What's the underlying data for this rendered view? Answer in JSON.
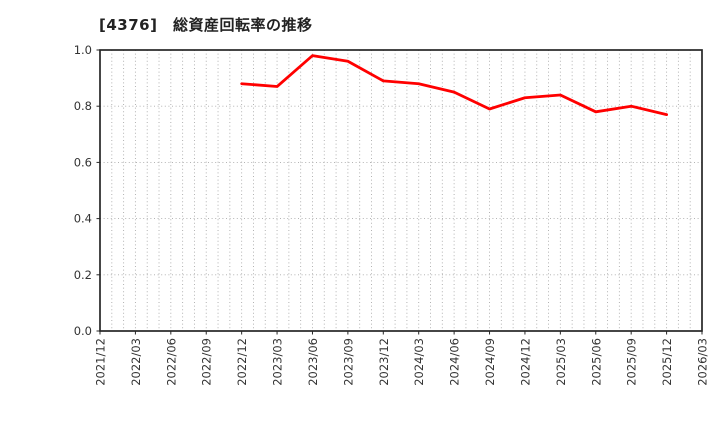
{
  "chart_data": {
    "type": "line",
    "title": "[4376]　総資産回転率の推移",
    "xlabel": "",
    "ylabel": "",
    "ylim": [
      0.0,
      1.0
    ],
    "y_ticks": [
      "0.0",
      "0.2",
      "0.4",
      "0.6",
      "0.8",
      "1.0"
    ],
    "x_range": {
      "start": "2021/12",
      "end": "2026/03"
    },
    "x_tick_labels": [
      "2021/12",
      "2022/03",
      "2022/06",
      "2022/09",
      "2022/12",
      "2023/03",
      "2023/06",
      "2023/09",
      "2023/12",
      "2024/03",
      "2024/06",
      "2024/09",
      "2024/12",
      "2025/03",
      "2025/06",
      "2025/09",
      "2025/12",
      "2026/03"
    ],
    "grid": {
      "vertical": "monthly",
      "horizontal": "every 0.2",
      "style": "dotted",
      "color": "#aaaaaa"
    },
    "legend": "none",
    "frame_color": "#262626",
    "series": [
      {
        "name": "総資産回転率",
        "color": "#ff0000",
        "x": [
          "2022/12",
          "2023/03",
          "2023/06",
          "2023/09",
          "2023/12",
          "2024/03",
          "2024/06",
          "2024/09",
          "2024/12",
          "2025/03",
          "2025/06",
          "2025/09",
          "2025/12"
        ],
        "y": [
          0.88,
          0.87,
          0.98,
          0.96,
          0.89,
          0.88,
          0.85,
          0.79,
          0.83,
          0.84,
          0.78,
          0.8,
          0.77
        ]
      }
    ]
  }
}
